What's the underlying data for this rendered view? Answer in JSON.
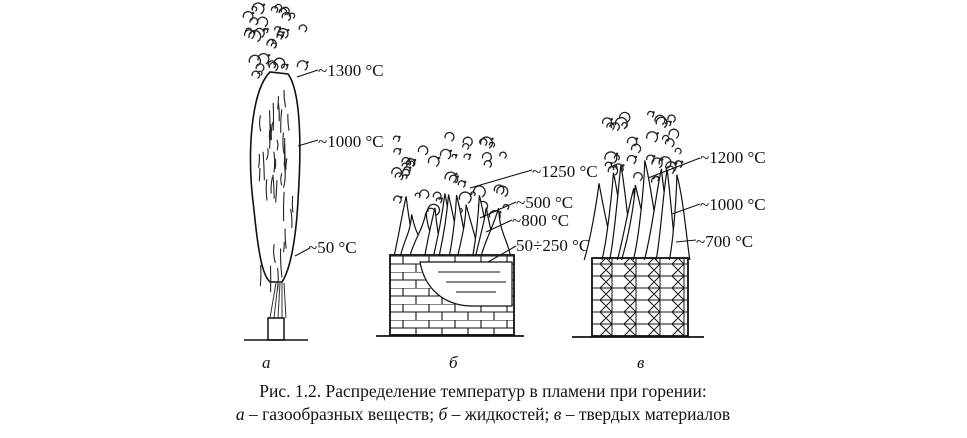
{
  "figure": {
    "panel_a": {
      "letter": "а",
      "labels": [
        "~1300 °C",
        "~1000 °C",
        "~50 °C"
      ]
    },
    "panel_b": {
      "letter": "б",
      "labels": [
        "~1250 °C",
        "~500 °C",
        "~800 °C",
        "50÷250 °C"
      ]
    },
    "panel_c": {
      "letter": "в",
      "labels": [
        "~1200 °C",
        "~1000 °C",
        "~700 °C"
      ]
    }
  },
  "caption": {
    "line1": "Рис. 1.2. Распределение температур в пламени при горении:",
    "line2": {
      "a_letter": "а",
      "a_text": " – газообразных веществ; ",
      "b_letter": "б",
      "b_text": " – жидкостей; ",
      "c_letter": "в",
      "c_text": " – твердых материалов"
    }
  }
}
